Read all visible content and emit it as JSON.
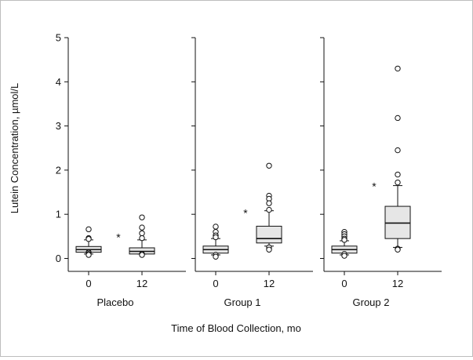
{
  "chart_data": {
    "type": "box",
    "ylabel": "Lutein Concentration, µmol/L",
    "xlabel": "Time of Blood Collection, mo",
    "ylim": [
      0,
      5
    ],
    "yticks": [
      0,
      1,
      2,
      3,
      4,
      5
    ],
    "grid": false,
    "significance_marker": "*",
    "panels": [
      {
        "name": "Placebo",
        "boxes": [
          {
            "x": "0",
            "min": 0.1,
            "q1": 0.14,
            "median": 0.2,
            "q3": 0.27,
            "max": 0.42,
            "outliers": [
              0.66,
              0.46,
              0.44,
              0.14,
              0.13,
              0.1,
              0.08
            ]
          },
          {
            "x": "12",
            "min": 0.1,
            "q1": 0.1,
            "median": 0.16,
            "q3": 0.24,
            "max": 0.42,
            "outliers": [
              0.93,
              0.7,
              0.57,
              0.46,
              0.1,
              0.08
            ]
          }
        ]
      },
      {
        "name": "Group 1",
        "boxes": [
          {
            "x": "0",
            "min": 0.08,
            "q1": 0.12,
            "median": 0.2,
            "q3": 0.28,
            "max": 0.45,
            "outliers": [
              0.72,
              0.6,
              0.52,
              0.48,
              0.08,
              0.04
            ]
          },
          {
            "x": "12",
            "min": 0.28,
            "q1": 0.35,
            "median": 0.45,
            "q3": 0.73,
            "max": 1.08,
            "outliers": [
              2.1,
              1.42,
              1.35,
              1.25,
              1.1,
              0.25,
              0.2
            ]
          }
        ]
      },
      {
        "name": "Group 2",
        "boxes": [
          {
            "x": "0",
            "min": 0.08,
            "q1": 0.12,
            "median": 0.2,
            "q3": 0.28,
            "max": 0.4,
            "outliers": [
              0.6,
              0.55,
              0.5,
              0.45,
              0.42,
              0.1,
              0.06
            ]
          },
          {
            "x": "12",
            "min": 0.25,
            "q1": 0.45,
            "median": 0.8,
            "q3": 1.18,
            "max": 1.65,
            "outliers": [
              4.3,
              3.18,
              2.45,
              1.9,
              1.72,
              0.22,
              0.2
            ]
          }
        ]
      }
    ],
    "star_values": [
      0.5,
      1.05,
      1.65
    ]
  }
}
